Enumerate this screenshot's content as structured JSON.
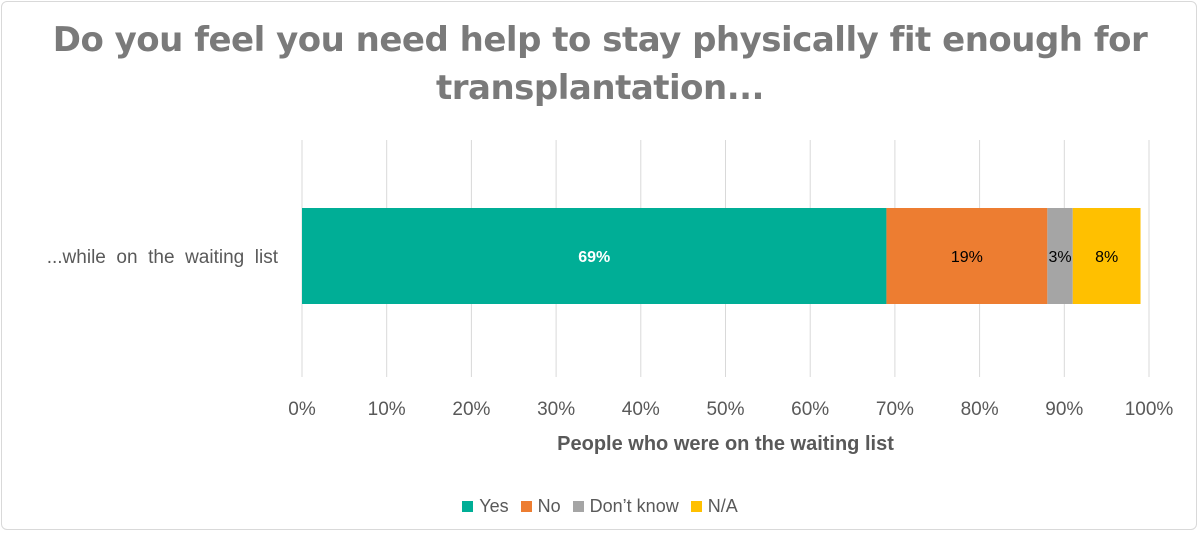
{
  "chart_data": {
    "type": "bar",
    "orientation": "horizontal",
    "stacked": "percent",
    "title_lines": [
      "Do you feel you need help to stay physically fit enough for",
      "transplantation..."
    ],
    "categories": [
      "...while  on  the  waiting  list"
    ],
    "series": [
      {
        "name": "Yes",
        "values": [
          69
        ],
        "label": "69%",
        "color": "#00ae96",
        "label_color": "#ffffff"
      },
      {
        "name": "No",
        "values": [
          19
        ],
        "label": "19%",
        "color": "#ed7d31",
        "label_color": "#000000"
      },
      {
        "name": "Don’t know",
        "values": [
          3
        ],
        "label": "3%",
        "color": "#a5a5a5",
        "label_color": "#000000"
      },
      {
        "name": "N/A",
        "values": [
          8
        ],
        "label": "8%",
        "color": "#ffc000",
        "label_color": "#000000"
      }
    ],
    "xlabel": "People who were on the waiting list",
    "xlim": [
      0,
      100
    ],
    "xticks": [
      0,
      10,
      20,
      30,
      40,
      50,
      60,
      70,
      80,
      90,
      100
    ],
    "xtick_labels": [
      "0%",
      "10%",
      "20%",
      "30%",
      "40%",
      "50%",
      "60%",
      "70%",
      "80%",
      "90%",
      "100%"
    ],
    "grid": true,
    "legend_position": "bottom"
  }
}
